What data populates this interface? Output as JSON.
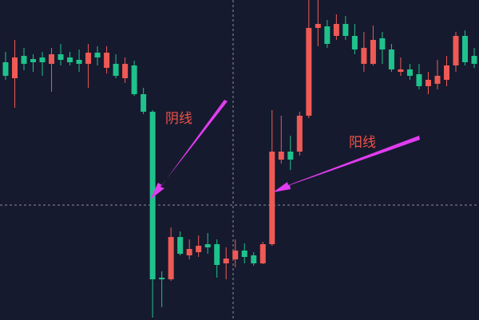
{
  "chart_data": {
    "type": "candlestick",
    "ylim": [
      0,
      401
    ],
    "up_color": "#ef5a55",
    "down_color": "#1fc28c",
    "open": [
      323,
      303,
      331,
      327,
      329,
      321,
      333,
      329,
      326,
      321,
      335,
      316,
      321,
      303,
      319,
      283,
      261,
      53,
      51,
      104,
      81,
      85,
      95,
      95,
      71,
      76,
      87,
      81,
      71,
      95,
      201,
      211,
      211,
      256,
      366,
      368,
      356,
      371,
      356,
      321,
      321,
      353,
      339,
      311,
      314,
      308,
      293,
      296,
      301,
      319,
      356,
      331
    ],
    "high": [
      336,
      351,
      341,
      333,
      336,
      341,
      346,
      336,
      339,
      346,
      343,
      343,
      333,
      329,
      325,
      291,
      263,
      61,
      116,
      111,
      101,
      106,
      109,
      101,
      91,
      101,
      96,
      85,
      98,
      263,
      256,
      231,
      261,
      401,
      401,
      376,
      383,
      381,
      371,
      361,
      369,
      361,
      346,
      329,
      321,
      321,
      311,
      326,
      331,
      361,
      363,
      341
    ],
    "low": [
      301,
      266,
      313,
      311,
      306,
      286,
      319,
      319,
      311,
      291,
      319,
      309,
      303,
      297,
      281,
      258,
      3,
      16,
      49,
      81,
      76,
      79,
      83,
      53,
      51,
      66,
      71,
      68,
      70,
      93,
      196,
      188,
      206,
      253,
      343,
      341,
      351,
      351,
      333,
      311,
      319,
      321,
      311,
      306,
      301,
      289,
      283,
      289,
      293,
      311,
      319,
      316
    ],
    "close": [
      306,
      329,
      321,
      323,
      323,
      333,
      326,
      323,
      321,
      335,
      329,
      335,
      306,
      321,
      283,
      261,
      51,
      51,
      104,
      83,
      89,
      93,
      91,
      69,
      77,
      87,
      79,
      71,
      95,
      211,
      211,
      201,
      256,
      366,
      371,
      346,
      371,
      356,
      339,
      341,
      351,
      339,
      314,
      314,
      306,
      293,
      301,
      306,
      319,
      356,
      323,
      321
    ],
    "annotations": [
      "阴线",
      "阳线"
    ]
  }
}
